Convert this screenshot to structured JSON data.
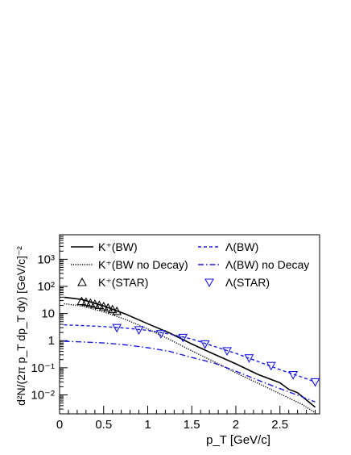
{
  "chart_data": {
    "type": "line",
    "xlabel": "p_T [GeV/c]",
    "ylabel": "d²N/(2π p_T dp_T dy) [GeV/c]⁻²",
    "xlim": [
      0,
      2.95
    ],
    "ylim": [
      0.002,
      8000
    ],
    "yscale": "log",
    "grid": false,
    "legend_position": "top",
    "x_ticks": [
      "0",
      "0.5",
      "1",
      "1.5",
      "2",
      "2.5"
    ],
    "y_ticks": [
      "10⁻²",
      "10⁻¹",
      "1",
      "10",
      "10²",
      "10³"
    ],
    "series": [
      {
        "name": "K⁺(BW)",
        "style": "solid",
        "color": "#000000",
        "marker": "none",
        "x": [
          0.05,
          0.25,
          0.5,
          0.75,
          1.0,
          1.25,
          1.5,
          1.75,
          2.0,
          2.25,
          2.5,
          2.6,
          2.7,
          2.8,
          2.9
        ],
        "y": [
          40,
          33,
          19,
          9.5,
          4.2,
          1.9,
          0.75,
          0.32,
          0.14,
          0.057,
          0.028,
          0.016,
          0.012,
          0.0065,
          0.0035
        ]
      },
      {
        "name": "K⁺(BW no Decay)",
        "style": "dotted",
        "color": "#000000",
        "marker": "none",
        "x": [
          0.05,
          0.25,
          0.5,
          0.75,
          1.0,
          1.25,
          1.5,
          1.75,
          2.0,
          2.25,
          2.5,
          2.75,
          2.9
        ],
        "y": [
          23,
          19,
          11.5,
          6.0,
          2.7,
          1.1,
          0.42,
          0.17,
          0.065,
          0.027,
          0.011,
          0.0045,
          0.0022
        ]
      },
      {
        "name": "K⁺(STAR)",
        "style": "none",
        "color": "#000000",
        "marker": "triangle-up",
        "x": [
          0.25,
          0.3,
          0.35,
          0.4,
          0.45,
          0.5,
          0.55,
          0.6,
          0.65
        ],
        "y": [
          28,
          26,
          24,
          22,
          20,
          18,
          16,
          14,
          12
        ]
      },
      {
        "name": "Λ(BW)",
        "style": "dashed",
        "color": "#1a1ae6",
        "marker": "none",
        "x": [
          0.05,
          0.25,
          0.5,
          0.75,
          1.0,
          1.25,
          1.5,
          1.75,
          2.0,
          2.25,
          2.5,
          2.75,
          2.9
        ],
        "y": [
          3.8,
          3.6,
          3.3,
          2.9,
          2.4,
          1.75,
          1.15,
          0.62,
          0.34,
          0.17,
          0.085,
          0.045,
          0.03
        ]
      },
      {
        "name": "Λ(BW) no Decay",
        "style": "dashdot",
        "color": "#1a1ae6",
        "marker": "none",
        "x": [
          0.05,
          0.25,
          0.5,
          0.75,
          1.0,
          1.25,
          1.5,
          1.75,
          2.0,
          2.25,
          2.5,
          2.75,
          2.9
        ],
        "y": [
          0.95,
          0.9,
          0.82,
          0.7,
          0.55,
          0.4,
          0.24,
          0.15,
          0.075,
          0.035,
          0.017,
          0.0085,
          0.0055
        ]
      },
      {
        "name": "Λ(STAR)",
        "style": "none",
        "color": "#1a1ae6",
        "marker": "triangle-down",
        "x": [
          0.65,
          0.9,
          1.15,
          1.4,
          1.65,
          1.9,
          2.15,
          2.4,
          2.65,
          2.9
        ],
        "y": [
          3.0,
          2.5,
          1.8,
          1.3,
          0.75,
          0.42,
          0.23,
          0.12,
          0.055,
          0.03
        ]
      }
    ]
  }
}
